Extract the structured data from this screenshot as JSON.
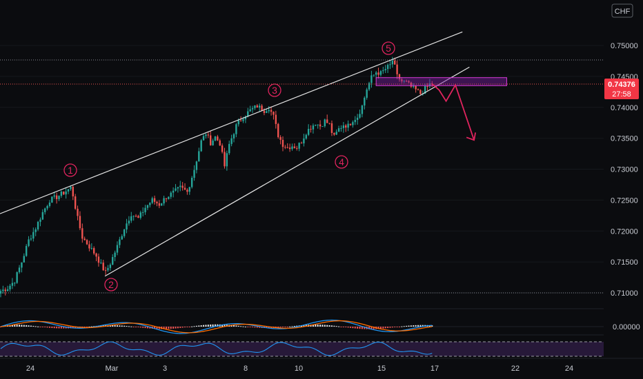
{
  "instrument": {
    "currency": "CHF",
    "last_price": "0.74376",
    "countdown": "27:58"
  },
  "colors": {
    "background": "#0b0c0f",
    "bull": "#26a69a",
    "bear": "#ef5350",
    "price_line": "#ef5350",
    "wave": "#e0245e",
    "zone_fill": "#7b1fa2",
    "zone_stroke": "#d63bd6",
    "macd_line": "#2196f3",
    "signal_line": "#ff6d00",
    "rsi_line": "#2196f3",
    "rsi_band": "#3b2355"
  },
  "chart_data": {
    "type": "candlestick",
    "symbol_currency": "CHF",
    "price_axis": {
      "ticks": [
        "0.75000",
        "0.74500",
        "0.74000",
        "0.73500",
        "0.73000",
        "0.72500",
        "0.72000",
        "0.71500",
        "0.71000"
      ],
      "top_tick": "0.75500",
      "range": [
        0.7085,
        0.7558
      ]
    },
    "time_axis": {
      "ticks": [
        "24",
        "Mar",
        "3",
        "8",
        "10",
        "15",
        "17",
        "22",
        "24"
      ]
    },
    "last_price": 0.74376,
    "wave_labels": [
      {
        "label": "1",
        "price": 0.7275
      },
      {
        "label": "2",
        "price": 0.7125
      },
      {
        "label": "3",
        "price": 0.7413
      },
      {
        "label": "4",
        "price": 0.7345
      },
      {
        "label": "5",
        "price": 0.7478
      }
    ],
    "price_path": [
      [
        0,
        0.7103
      ],
      [
        3,
        0.7108
      ],
      [
        6,
        0.712
      ],
      [
        9,
        0.715
      ],
      [
        12,
        0.7185
      ],
      [
        15,
        0.7205
      ],
      [
        18,
        0.723
      ],
      [
        21,
        0.725
      ],
      [
        24,
        0.7255
      ],
      [
        27,
        0.7262
      ],
      [
        30,
        0.727
      ],
      [
        31,
        0.7258
      ],
      [
        33,
        0.722
      ],
      [
        35,
        0.719
      ],
      [
        37,
        0.718
      ],
      [
        39,
        0.717
      ],
      [
        41,
        0.716
      ],
      [
        43,
        0.7145
      ],
      [
        45,
        0.7133
      ],
      [
        47,
        0.7148
      ],
      [
        50,
        0.7175
      ],
      [
        53,
        0.7205
      ],
      [
        56,
        0.7228
      ],
      [
        59,
        0.722
      ],
      [
        62,
        0.7238
      ],
      [
        65,
        0.725
      ],
      [
        68,
        0.7243
      ],
      [
        71,
        0.7255
      ],
      [
        74,
        0.7262
      ],
      [
        77,
        0.727
      ],
      [
        80,
        0.7263
      ],
      [
        83,
        0.73
      ],
      [
        86,
        0.7345
      ],
      [
        88,
        0.7358
      ],
      [
        90,
        0.7343
      ],
      [
        92,
        0.7352
      ],
      [
        94,
        0.7342
      ],
      [
        96,
        0.7305
      ],
      [
        98,
        0.734
      ],
      [
        101,
        0.737
      ],
      [
        104,
        0.7385
      ],
      [
        107,
        0.7395
      ],
      [
        110,
        0.7402
      ],
      [
        113,
        0.7395
      ],
      [
        115,
        0.74
      ],
      [
        117,
        0.7385
      ],
      [
        119,
        0.7355
      ],
      [
        121,
        0.734
      ],
      [
        123,
        0.7335
      ],
      [
        125,
        0.7338
      ],
      [
        127,
        0.7335
      ],
      [
        129,
        0.7345
      ],
      [
        131,
        0.736
      ],
      [
        133,
        0.7368
      ],
      [
        135,
        0.7375
      ],
      [
        137,
        0.737
      ],
      [
        139,
        0.7378
      ],
      [
        141,
        0.7372
      ],
      [
        142,
        0.736
      ],
      [
        143,
        0.7352
      ],
      [
        145,
        0.7365
      ],
      [
        147,
        0.7372
      ],
      [
        149,
        0.737
      ],
      [
        151,
        0.738
      ],
      [
        153,
        0.7385
      ],
      [
        155,
        0.7402
      ],
      [
        157,
        0.743
      ],
      [
        159,
        0.7448
      ],
      [
        161,
        0.7457
      ],
      [
        163,
        0.7455
      ],
      [
        165,
        0.7462
      ],
      [
        167,
        0.7468
      ],
      [
        168,
        0.7476
      ],
      [
        169,
        0.7465
      ],
      [
        170,
        0.745
      ],
      [
        172,
        0.7442
      ],
      [
        174,
        0.744
      ],
      [
        176,
        0.7433
      ],
      [
        178,
        0.7428
      ],
      [
        180,
        0.7422
      ],
      [
        182,
        0.743
      ],
      [
        184,
        0.7437
      ],
      [
        185,
        0.7438
      ]
    ],
    "trendlines": [
      {
        "name": "upper",
        "from": [
          0,
          0.7228
        ],
        "to": [
          198,
          0.7522
        ]
      },
      {
        "name": "lower",
        "from": [
          45,
          0.7127
        ],
        "to": [
          201,
          0.7465
        ]
      }
    ],
    "projection": [
      [
        185,
        0.7438
      ],
      [
        188,
        0.7428
      ],
      [
        191,
        0.741
      ],
      [
        195,
        0.7436
      ],
      [
        203,
        0.7347
      ]
    ],
    "resistance_zone": {
      "from_x": 161,
      "to_x": 217,
      "low": 0.7435,
      "high": 0.7448
    },
    "indicators": {
      "macd": {
        "zero_label": "0.00000"
      },
      "rsi": {
        "band": [
          30,
          70
        ]
      }
    }
  }
}
